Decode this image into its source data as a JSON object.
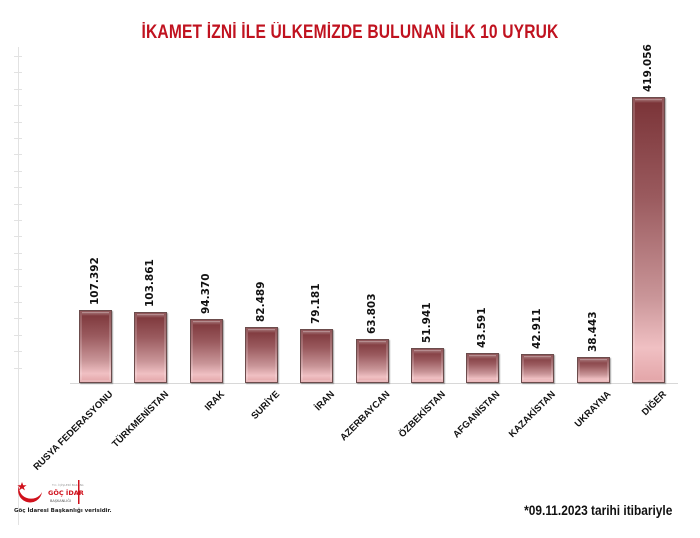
{
  "title": "İKAMET İZNİ İLE ÜLKEMİZDE BULUNAN İLK 10 UYRUK",
  "footnote": "*09.11.2023 tarihi itibariyle",
  "logo": {
    "org_line1": "T.C. İÇİŞLERİ BAKANLIĞI",
    "org_line2": "GÖÇ İDARESİ",
    "org_line3": "BAŞKANLIĞI",
    "caption": "Göç İdaresi Başkanlığı verisidir.",
    "icon": "crescent-star-icon"
  },
  "colors": {
    "title": "#c0121f",
    "bar_top": "#7a3337",
    "bar_bottom": "#f0c0c3"
  },
  "chart_data": {
    "type": "bar",
    "title": "İKAMET İZNİ İLE ÜLKEMİZDE BULUNAN İLK 10 UYRUK",
    "xlabel": "",
    "ylabel": "",
    "categories": [
      "RUSYA FEDERASYONU",
      "TÜRKMENİSTAN",
      "IRAK",
      "SURİYE",
      "İRAN",
      "AZERBAYCAN",
      "ÖZBEKİSTAN",
      "AFGANİSTAN",
      "KAZAKİSTAN",
      "UKRAYNA",
      "DİĞER"
    ],
    "values": [
      107392,
      103861,
      94370,
      82489,
      79181,
      63803,
      51941,
      43591,
      42911,
      38443,
      419056
    ],
    "value_labels": [
      "107.392",
      "103.861",
      "94.370",
      "82.489",
      "79.181",
      "63.803",
      "51.941",
      "43.591",
      "42.911",
      "38.443",
      "419.056"
    ],
    "ylim": [
      0,
      430000
    ],
    "grid": false,
    "legend": "none",
    "annotation": "*09.11.2023 tarihi itibariyle"
  }
}
